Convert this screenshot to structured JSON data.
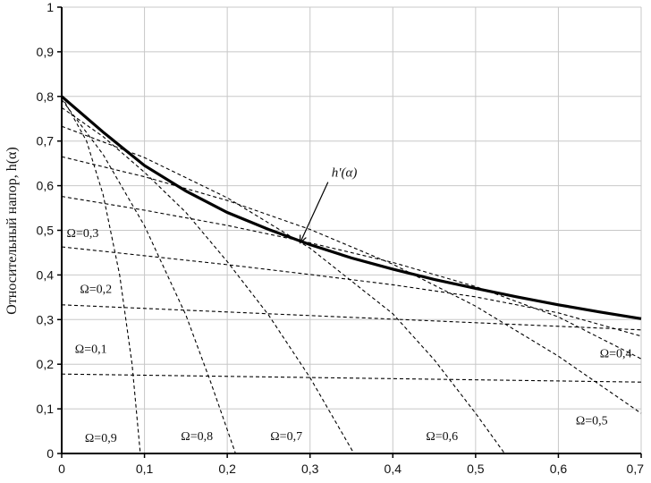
{
  "chart_data": {
    "type": "line",
    "title": "",
    "xlabel": "",
    "ylabel": "Относительный напор, h(α)",
    "xlim": [
      0,
      0.7
    ],
    "ylim": [
      0,
      1
    ],
    "x_ticks": [
      "0",
      "0,1",
      "0,2",
      "0,3",
      "0,4",
      "0,5",
      "0,6",
      "0,7"
    ],
    "y_ticks": [
      "0",
      "0,1",
      "0,2",
      "0,3",
      "0,4",
      "0,5",
      "0,6",
      "0,7",
      "0,8",
      "0,9",
      "1"
    ],
    "grid": true,
    "envelope": {
      "label": "h'(α)",
      "x": [
        0,
        0.05,
        0.1,
        0.15,
        0.2,
        0.25,
        0.3,
        0.35,
        0.4,
        0.45,
        0.5,
        0.55,
        0.6,
        0.65,
        0.7
      ],
      "y": [
        0.8,
        0.72,
        0.645,
        0.588,
        0.54,
        0.502,
        0.468,
        0.438,
        0.413,
        0.39,
        0.37,
        0.351,
        0.333,
        0.317,
        0.302
      ]
    },
    "series": [
      {
        "name": "Ω=0,1",
        "x": [
          0,
          0.7
        ],
        "y": [
          0.178,
          0.16
        ]
      },
      {
        "name": "Ω=0,2",
        "x": [
          0,
          0.7
        ],
        "y": [
          0.333,
          0.277
        ]
      },
      {
        "name": "Ω=0,3",
        "x": [
          0,
          0.1,
          0.2,
          0.3,
          0.4,
          0.5,
          0.6,
          0.7
        ],
        "y": [
          0.463,
          0.443,
          0.423,
          0.401,
          0.378,
          0.351,
          0.315,
          0.263
        ]
      },
      {
        "name": "Ω=0,4",
        "x": [
          0,
          0.1,
          0.2,
          0.3,
          0.4,
          0.5,
          0.6,
          0.7
        ],
        "y": [
          0.576,
          0.545,
          0.511,
          0.472,
          0.428,
          0.374,
          0.306,
          0.212
        ]
      },
      {
        "name": "Ω=0,5",
        "x": [
          0,
          0.1,
          0.2,
          0.3,
          0.4,
          0.5,
          0.6,
          0.7
        ],
        "y": [
          0.665,
          0.62,
          0.567,
          0.502,
          0.424,
          0.33,
          0.218,
          0.09
        ]
      },
      {
        "name": "Ω=0,6",
        "x": [
          0,
          0.1,
          0.2,
          0.3,
          0.4,
          0.45,
          0.5,
          0.535
        ],
        "y": [
          0.733,
          0.663,
          0.573,
          0.46,
          0.313,
          0.21,
          0.09,
          0
        ]
      },
      {
        "name": "Ω=0,7",
        "x": [
          0,
          0.05,
          0.1,
          0.15,
          0.2,
          0.25,
          0.3,
          0.353
        ],
        "y": [
          0.775,
          0.71,
          0.63,
          0.54,
          0.43,
          0.31,
          0.17,
          0
        ]
      },
      {
        "name": "Ω=0,8",
        "x": [
          0,
          0.05,
          0.1,
          0.15,
          0.18,
          0.21
        ],
        "y": [
          0.793,
          0.67,
          0.51,
          0.31,
          0.16,
          0
        ]
      },
      {
        "name": "Ω=0,9",
        "x": [
          0,
          0.03,
          0.05,
          0.07,
          0.085,
          0.095
        ],
        "y": [
          0.8,
          0.7,
          0.58,
          0.4,
          0.2,
          0
        ]
      }
    ],
    "annotations": [
      {
        "text": "Ω=0,1",
        "x": 0.016,
        "y": 0.225
      },
      {
        "text": "Ω=0,2",
        "x": 0.022,
        "y": 0.36
      },
      {
        "text": "Ω=0,3",
        "x": 0.006,
        "y": 0.485
      },
      {
        "text": "Ω=0,4",
        "x": 0.65,
        "y": 0.215
      },
      {
        "text": "Ω=0,5",
        "x": 0.621,
        "y": 0.065
      },
      {
        "text": "Ω=0,6",
        "x": 0.44,
        "y": 0.03
      },
      {
        "text": "Ω=0,7",
        "x": 0.252,
        "y": 0.03
      },
      {
        "text": "Ω=0,8",
        "x": 0.144,
        "y": 0.03
      },
      {
        "text": "Ω=0,9",
        "x": 0.028,
        "y": 0.026
      }
    ],
    "colors": {
      "axis": "#000000",
      "grid": "#c8c8c8",
      "lines": "#000000"
    }
  }
}
